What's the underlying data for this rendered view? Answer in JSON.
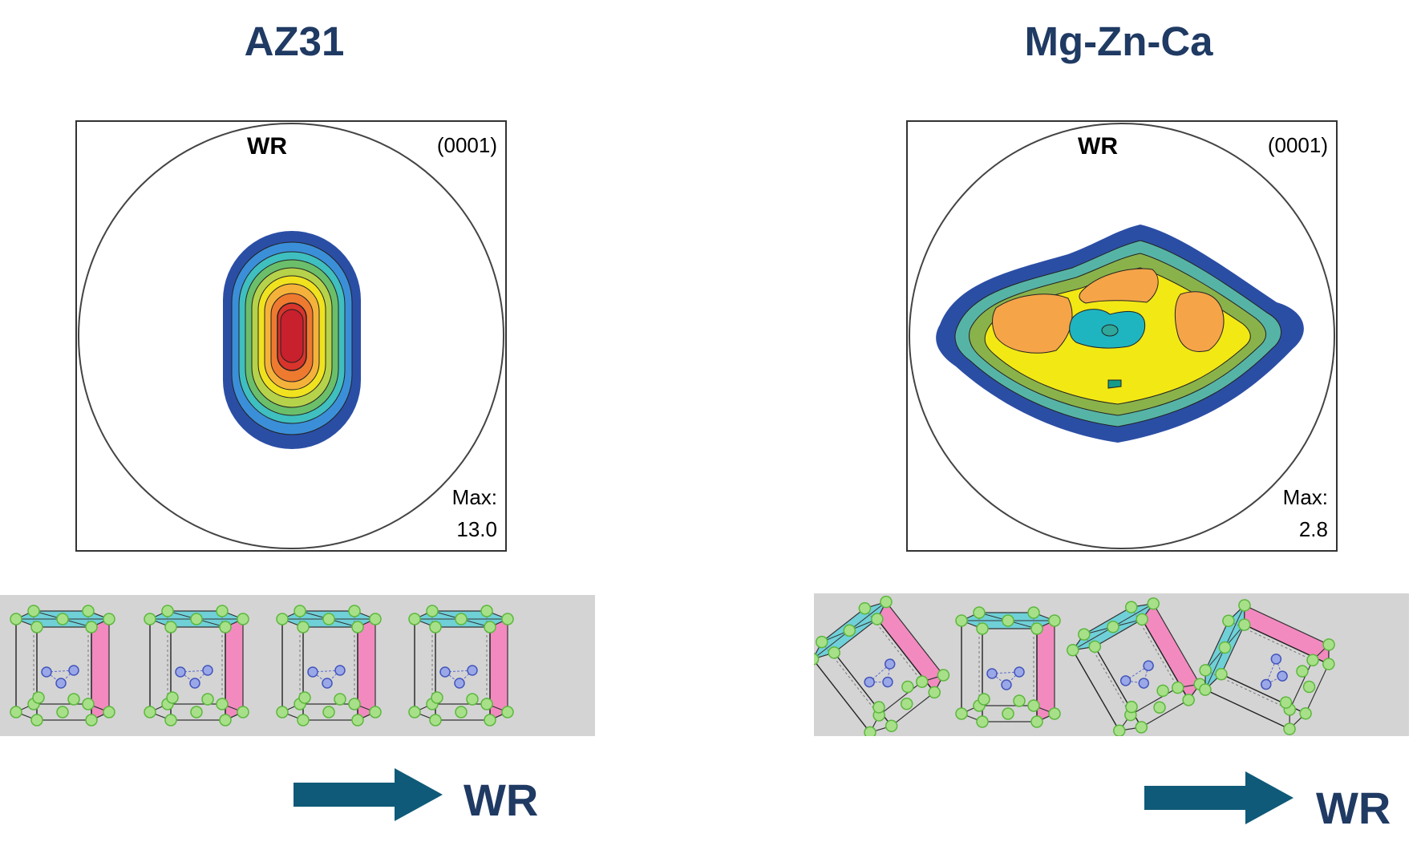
{
  "panels": [
    {
      "title": "AZ31",
      "pole_figure": {
        "direction": "WR",
        "plane": "(0001)",
        "max_label": "Max:",
        "max_value": "13.0"
      }
    },
    {
      "title": "Mg-Zn-Ca",
      "pole_figure": {
        "direction": "WR",
        "plane": "(0001)",
        "max_label": "Max:",
        "max_value": "2.8"
      }
    }
  ],
  "arrow_label": "WR",
  "colors": {
    "title": "#1f3a63",
    "arrow": "#0f5a78",
    "strip": "#d4d4d4",
    "atom_corner": "#a8e08a",
    "atom_inner": "#9aa8e8",
    "basal_plane": "#6fd0d8",
    "prism_plane": "#f28ac0"
  }
}
